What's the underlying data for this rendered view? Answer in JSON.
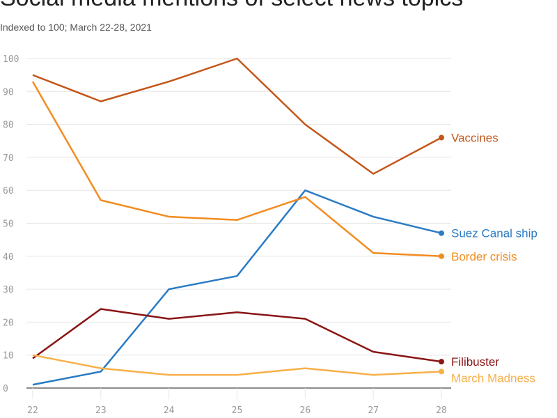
{
  "chart_data": {
    "type": "line",
    "title": "Social media mentions of select news topics",
    "subtitle": "Indexed to 100; March 22-28, 2021",
    "x": [
      22,
      23,
      24,
      25,
      26,
      27,
      28
    ],
    "ylim": [
      0,
      100
    ],
    "yticks": [
      0,
      10,
      20,
      30,
      40,
      50,
      60,
      70,
      80,
      90,
      100
    ],
    "grid": true,
    "legend": "end-of-line labels",
    "series": [
      {
        "name": "Vaccines",
        "color": "#c4561a",
        "values": [
          95,
          87,
          93,
          100,
          80,
          65,
          76
        ]
      },
      {
        "name": "Suez Canal ship",
        "color": "#2a7bc4",
        "values": [
          1,
          5,
          30,
          34,
          60,
          52,
          47
        ]
      },
      {
        "name": "Border crisis",
        "color": "#f28c1f",
        "values": [
          93,
          57,
          52,
          51,
          58,
          41,
          40
        ]
      },
      {
        "name": "Filibuster",
        "color": "#8a1414",
        "values": [
          9,
          24,
          21,
          23,
          21,
          11,
          8
        ]
      },
      {
        "name": "March Madness",
        "color": "#f7b04a",
        "values": [
          10,
          6,
          4,
          4,
          6,
          4,
          5
        ]
      }
    ]
  }
}
